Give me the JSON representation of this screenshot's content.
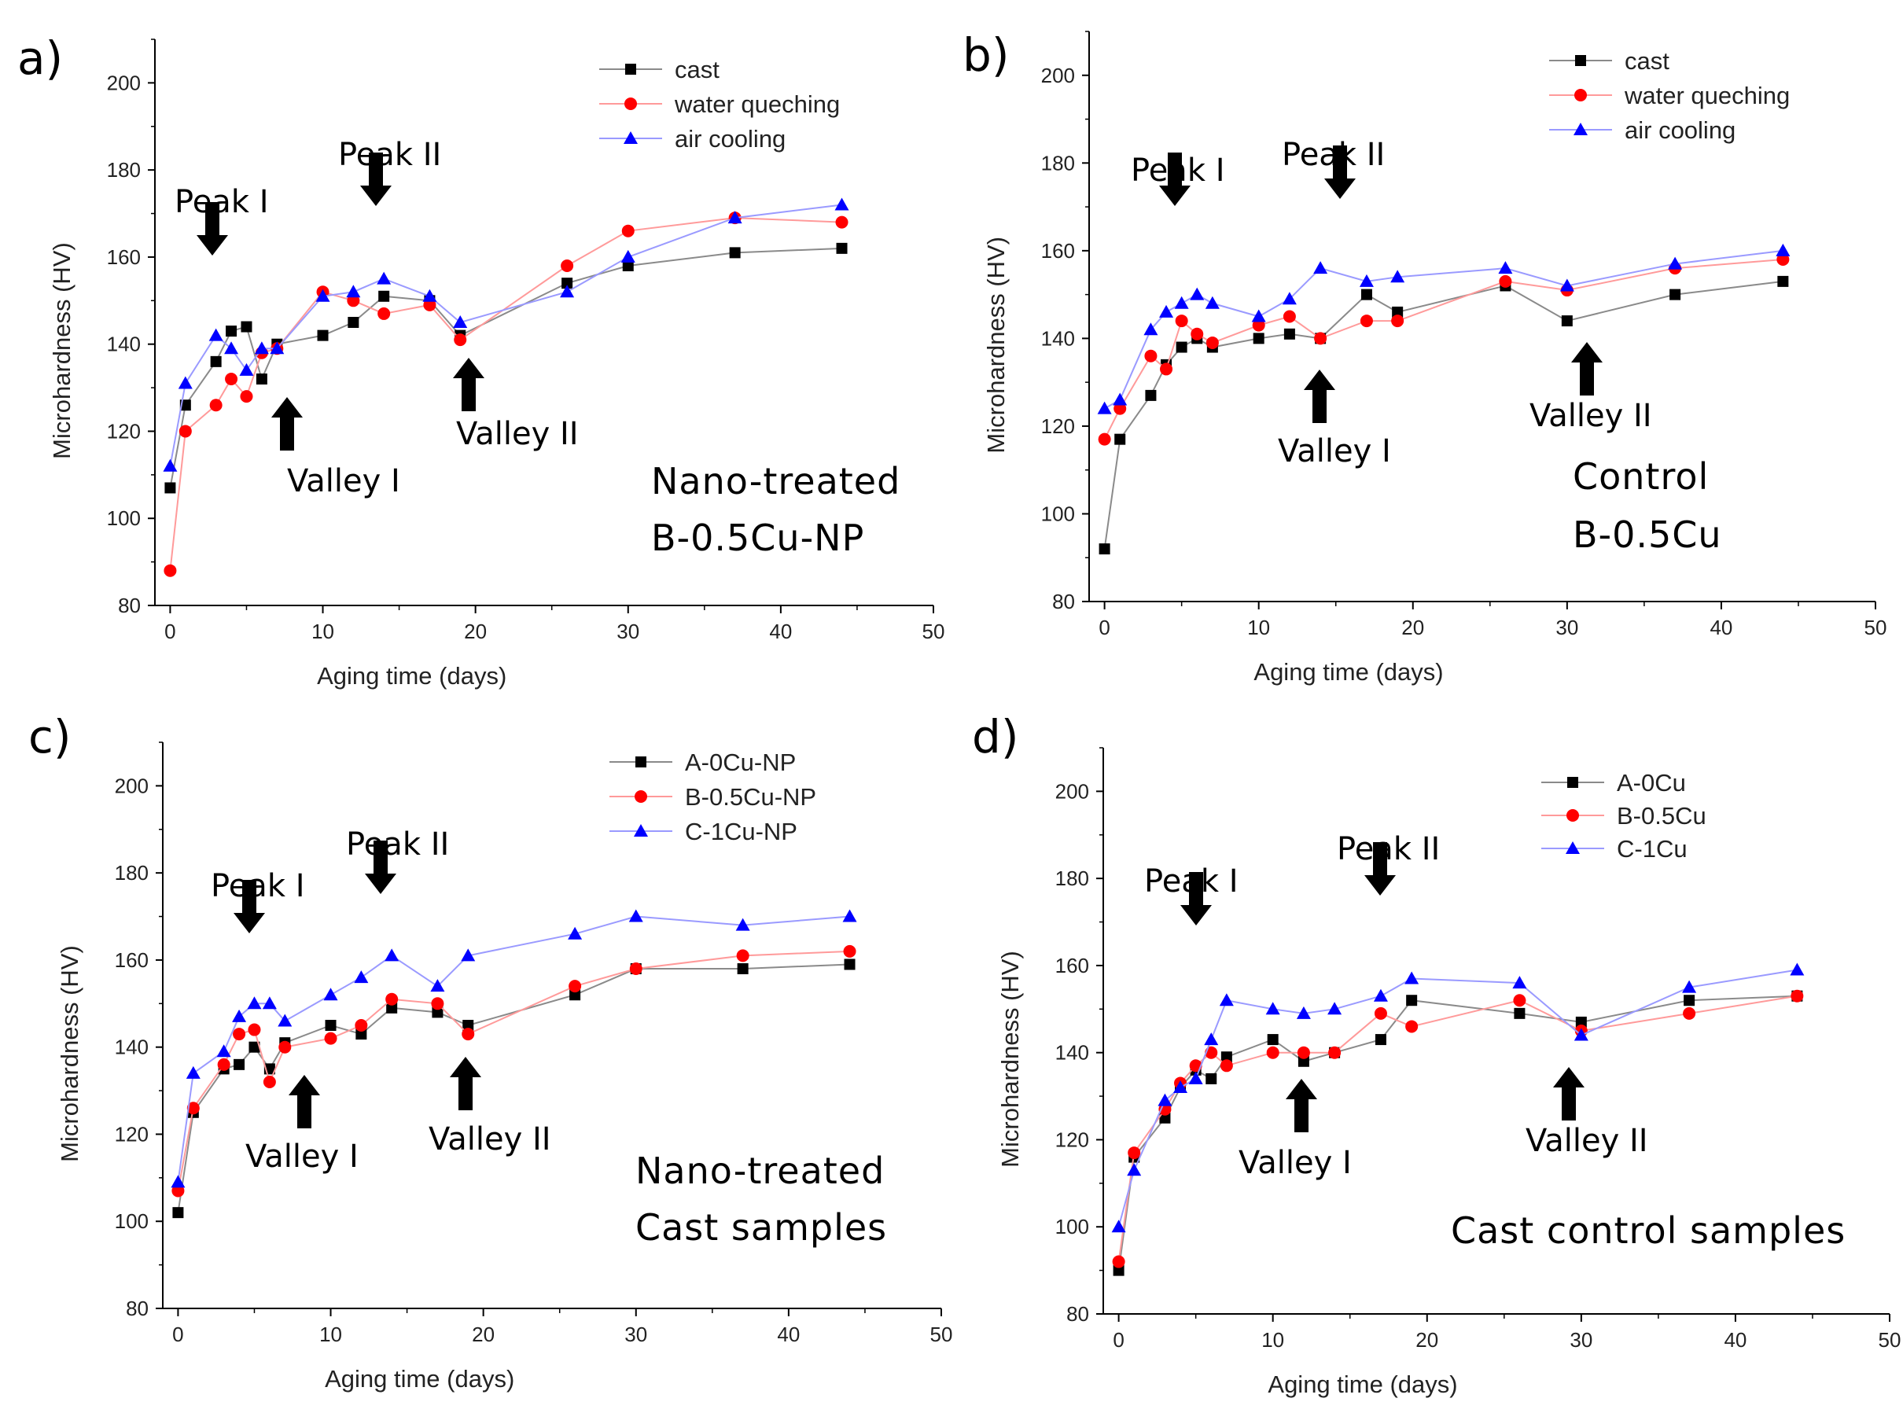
{
  "chart_data": [
    {
      "type": "line",
      "panel": "a)",
      "xlabel": "Aging time (days)",
      "ylabel": "Microhardness (HV)",
      "xlim": [
        -1,
        50
      ],
      "ylim": [
        80,
        210
      ],
      "xticks": [
        0,
        10,
        20,
        30,
        40,
        50
      ],
      "yticks": [
        80,
        100,
        120,
        140,
        160,
        180,
        200
      ],
      "legend_position": "top-right",
      "series": [
        {
          "name": "cast",
          "color": "#000000",
          "marker": "square",
          "x": [
            0,
            1,
            3,
            4,
            5,
            6,
            7,
            10,
            12,
            14,
            17,
            19,
            26,
            30,
            37,
            44
          ],
          "y": [
            107,
            126,
            136,
            143,
            144,
            132,
            140,
            142,
            145,
            151,
            150,
            142,
            154,
            158,
            161,
            162
          ]
        },
        {
          "name": "water queching",
          "color": "#ff0000",
          "marker": "circle",
          "x": [
            0,
            1,
            3,
            4,
            5,
            6,
            7,
            10,
            12,
            14,
            17,
            19,
            26,
            30,
            37,
            44
          ],
          "y": [
            88,
            120,
            126,
            132,
            128,
            138,
            139,
            152,
            150,
            147,
            149,
            141,
            158,
            166,
            169,
            168
          ]
        },
        {
          "name": "air cooling",
          "color": "#0000ff",
          "marker": "triangle",
          "x": [
            0,
            1,
            3,
            4,
            5,
            6,
            7,
            10,
            12,
            14,
            17,
            19,
            26,
            30,
            37,
            44
          ],
          "y": [
            112,
            131,
            142,
            139,
            134,
            139,
            139,
            151,
            152,
            155,
            151,
            145,
            152,
            160,
            169,
            172
          ]
        }
      ],
      "annotations": [
        {
          "text": "Peak I",
          "direction": "down",
          "x": 2.5,
          "y": 146
        },
        {
          "text": "Valley I",
          "direction": "up",
          "x": 7.5,
          "y": 125
        },
        {
          "text": "Peak II",
          "direction": "down",
          "x": 13.5,
          "y": 158
        },
        {
          "text": "Valley II",
          "direction": "up",
          "x": 19.5,
          "y": 136
        }
      ],
      "notes": [
        "Nano-treated",
        "B-0.5Cu-NP"
      ]
    },
    {
      "type": "line",
      "panel": "b)",
      "xlabel": "Aging time (days)",
      "ylabel": "Microhardness (HV)",
      "xlim": [
        -1,
        50
      ],
      "ylim": [
        80,
        210
      ],
      "xticks": [
        0,
        10,
        20,
        30,
        40,
        50
      ],
      "yticks": [
        80,
        100,
        120,
        140,
        160,
        180,
        200
      ],
      "legend_position": "top-right",
      "series": [
        {
          "name": "cast",
          "color": "#000000",
          "marker": "square",
          "x": [
            0,
            1,
            3,
            4,
            5,
            6,
            7,
            10,
            12,
            14,
            17,
            19,
            26,
            30,
            37,
            44
          ],
          "y": [
            92,
            117,
            127,
            134,
            138,
            140,
            138,
            140,
            141,
            140,
            150,
            146,
            152,
            144,
            150,
            153
          ]
        },
        {
          "name": "water queching",
          "color": "#ff0000",
          "marker": "circle",
          "x": [
            0,
            1,
            3,
            4,
            5,
            6,
            7,
            10,
            12,
            14,
            17,
            19,
            26,
            30,
            37,
            44
          ],
          "y": [
            117,
            124,
            136,
            133,
            144,
            141,
            139,
            143,
            145,
            140,
            144,
            144,
            153,
            151,
            156,
            158
          ]
        },
        {
          "name": "air cooling",
          "color": "#0000ff",
          "marker": "triangle",
          "x": [
            0,
            1,
            3,
            4,
            5,
            6,
            7,
            10,
            12,
            14,
            17,
            19,
            26,
            30,
            37,
            44
          ],
          "y": [
            124,
            126,
            142,
            146,
            148,
            150,
            148,
            145,
            149,
            156,
            153,
            154,
            156,
            152,
            157,
            160
          ]
        }
      ],
      "annotations": [
        {
          "text": "Peak I",
          "direction": "down",
          "x": 4,
          "y": 153
        },
        {
          "text": "Peak II",
          "direction": "down",
          "x": 15,
          "y": 164
        },
        {
          "text": "Valley I",
          "direction": "up",
          "x": 13.5,
          "y": 133
        },
        {
          "text": "Valley II",
          "direction": "up",
          "x": 31,
          "y": 137
        }
      ],
      "notes": [
        "Control",
        "B-0.5Cu"
      ]
    },
    {
      "type": "line",
      "panel": "c)",
      "xlabel": "Aging time (days)",
      "ylabel": "Microhardness (HV)",
      "xlim": [
        -1,
        50
      ],
      "ylim": [
        80,
        210
      ],
      "xticks": [
        0,
        10,
        20,
        30,
        40,
        50
      ],
      "yticks": [
        80,
        100,
        120,
        140,
        160,
        180,
        200
      ],
      "legend_position": "top-right",
      "series": [
        {
          "name": "A-0Cu-NP",
          "color": "#000000",
          "marker": "square",
          "x": [
            0,
            1,
            3,
            4,
            5,
            6,
            7,
            10,
            12,
            14,
            17,
            19,
            26,
            30,
            37,
            44
          ],
          "y": [
            102,
            125,
            135,
            136,
            140,
            135,
            141,
            145,
            143,
            149,
            148,
            145,
            152,
            158,
            158,
            159
          ]
        },
        {
          "name": "B-0.5Cu-NP",
          "color": "#ff0000",
          "marker": "circle",
          "x": [
            0,
            1,
            3,
            4,
            5,
            6,
            7,
            10,
            12,
            14,
            17,
            19,
            26,
            30,
            37,
            44
          ],
          "y": [
            107,
            126,
            136,
            143,
            144,
            132,
            140,
            142,
            145,
            151,
            150,
            143,
            154,
            158,
            161,
            162
          ]
        },
        {
          "name": "C-1Cu-NP",
          "color": "#0000ff",
          "marker": "triangle",
          "x": [
            0,
            1,
            3,
            4,
            5,
            6,
            7,
            10,
            12,
            14,
            17,
            19,
            26,
            30,
            37,
            44
          ],
          "y": [
            109,
            134,
            139,
            147,
            150,
            150,
            146,
            152,
            156,
            161,
            154,
            161,
            166,
            170,
            168,
            170
          ]
        }
      ],
      "annotations": [
        {
          "text": "Peak I",
          "direction": "down",
          "x": 4.5,
          "y": 152
        },
        {
          "text": "Valley I",
          "direction": "up",
          "x": 8,
          "y": 130
        },
        {
          "text": "Peak II",
          "direction": "down",
          "x": 13,
          "y": 165
        },
        {
          "text": "Valley II",
          "direction": "up",
          "x": 19,
          "y": 136
        }
      ],
      "notes": [
        "Nano-treated",
        "Cast samples"
      ]
    },
    {
      "type": "line",
      "panel": "d)",
      "xlabel": "Aging time (days)",
      "ylabel": "Microhardness (HV)",
      "xlim": [
        -1,
        50
      ],
      "ylim": [
        80,
        210
      ],
      "xticks": [
        0,
        10,
        20,
        30,
        40,
        50
      ],
      "yticks": [
        80,
        100,
        120,
        140,
        160,
        180,
        200
      ],
      "legend_position": "top-right",
      "series": [
        {
          "name": "A-0Cu",
          "color": "#000000",
          "marker": "square",
          "x": [
            0,
            1,
            3,
            4,
            5,
            6,
            7,
            10,
            12,
            14,
            17,
            19,
            26,
            30,
            37,
            44
          ],
          "y": [
            90,
            116,
            125,
            132,
            136,
            134,
            139,
            143,
            138,
            140,
            143,
            152,
            149,
            147,
            152,
            153
          ]
        },
        {
          "name": "B-0.5Cu",
          "color": "#ff0000",
          "marker": "circle",
          "x": [
            0,
            1,
            3,
            4,
            5,
            6,
            7,
            10,
            12,
            14,
            17,
            19,
            26,
            30,
            37,
            44
          ],
          "y": [
            92,
            117,
            127,
            133,
            137,
            140,
            137,
            140,
            140,
            140,
            149,
            146,
            152,
            145,
            149,
            153
          ]
        },
        {
          "name": "C-1Cu",
          "color": "#0000ff",
          "marker": "triangle",
          "x": [
            0,
            1,
            3,
            4,
            5,
            6,
            7,
            10,
            12,
            14,
            17,
            19,
            26,
            30,
            37,
            44
          ],
          "y": [
            100,
            113,
            129,
            132,
            134,
            143,
            152,
            150,
            149,
            150,
            153,
            157,
            156,
            144,
            155,
            159
          ]
        }
      ],
      "annotations": [
        {
          "text": "Peak I",
          "direction": "down",
          "x": 6,
          "y": 160
        },
        {
          "text": "Peak II",
          "direction": "down",
          "x": 18,
          "y": 164
        },
        {
          "text": "Valley I",
          "direction": "up",
          "x": 13,
          "y": 128
        },
        {
          "text": "Valley II",
          "direction": "up",
          "x": 31,
          "y": 136
        }
      ],
      "notes": [
        "Cast control samples"
      ]
    }
  ]
}
